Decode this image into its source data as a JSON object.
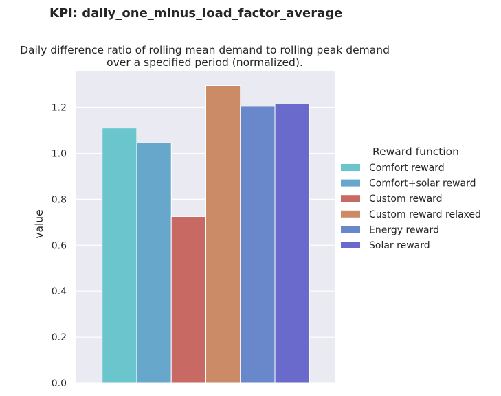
{
  "chart_data": {
    "type": "bar",
    "title": "KPI: daily_one_minus_load_factor_average",
    "subtitle_lines": [
      "Daily difference ratio of rolling mean demand to rolling peak demand",
      "over a specified period (normalized)."
    ],
    "xlabel": "",
    "ylabel": "value",
    "ylim": [
      0,
      1.36
    ],
    "yticks": [
      "0.0",
      "0.2",
      "0.4",
      "0.6",
      "0.8",
      "1.0",
      "1.2"
    ],
    "grid": true,
    "legend": {
      "title": "Reward function",
      "placement": "right"
    },
    "series": [
      {
        "name": "Comfort reward",
        "values": [
          1.11
        ],
        "color": "#6ac5cc"
      },
      {
        "name": "Comfort+solar reward",
        "values": [
          1.045
        ],
        "color": "#67a7cb"
      },
      {
        "name": "Custom reward",
        "values": [
          0.725
        ],
        "color": "#c86a63"
      },
      {
        "name": "Custom reward relaxed",
        "values": [
          1.295
        ],
        "color": "#cb8b66"
      },
      {
        "name": "Energy reward",
        "values": [
          1.205
        ],
        "color": "#6988cb"
      },
      {
        "name": "Solar reward",
        "values": [
          1.215
        ],
        "color": "#6a6acd"
      }
    ]
  }
}
